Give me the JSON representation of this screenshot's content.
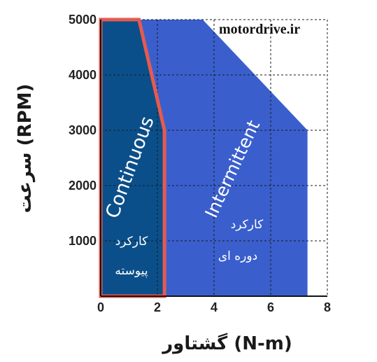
{
  "chart_data": {
    "type": "area",
    "xlabel": "گشتاور (N-m)",
    "ylabel": "سرعت (RPM)",
    "xlim": [
      0,
      8
    ],
    "ylim": [
      0,
      5000
    ],
    "x_ticks": [
      "0",
      "2",
      "4",
      "6",
      "8"
    ],
    "y_ticks": [
      "1000",
      "2000",
      "3000",
      "4000",
      "5000"
    ],
    "grid": true,
    "watermark": "motordrive.ir",
    "regions": [
      {
        "name": "Intermittent",
        "label_fa_line1": "کارکرد",
        "label_fa_line2": "دوره ای",
        "color": "#3a5fcd",
        "points": [
          [
            0,
            0
          ],
          [
            0,
            5000
          ],
          [
            3.6,
            5000
          ],
          [
            7.3,
            3000
          ],
          [
            7.3,
            0
          ]
        ]
      },
      {
        "name": "Continuous",
        "label_fa_line1": "کارکرد",
        "label_fa_line2": "پیوسته",
        "color": "#0b4f8a",
        "border_color": "#e65a4f",
        "points": [
          [
            0,
            0
          ],
          [
            0,
            5000
          ],
          [
            1.35,
            5000
          ],
          [
            2.25,
            3000
          ],
          [
            2.25,
            0
          ]
        ]
      }
    ]
  }
}
